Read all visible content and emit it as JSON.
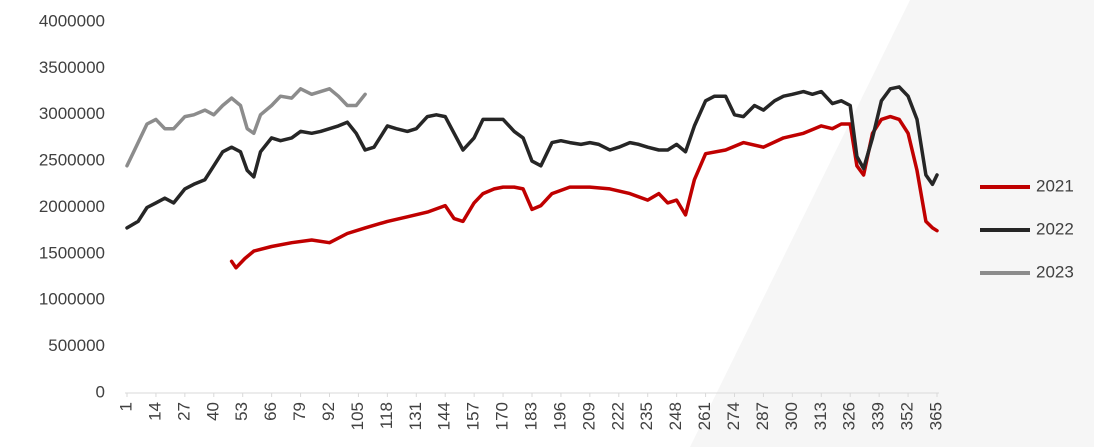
{
  "chart_data": {
    "type": "line",
    "xlim": [
      1,
      365
    ],
    "xticks": [
      1,
      14,
      27,
      40,
      53,
      66,
      79,
      92,
      105,
      118,
      131,
      144,
      157,
      170,
      183,
      196,
      209,
      222,
      235,
      248,
      261,
      274,
      287,
      300,
      313,
      326,
      339,
      352,
      365
    ],
    "ylim": [
      0,
      4000000
    ],
    "yticks": [
      0,
      500000,
      1000000,
      1500000,
      2000000,
      2500000,
      3000000,
      3500000,
      4000000
    ],
    "grid": false,
    "legend": "right",
    "series": [
      {
        "name": "2021",
        "color": "#c00000",
        "x": [
          48,
          50,
          54,
          58,
          66,
          75,
          84,
          92,
          100,
          108,
          118,
          127,
          136,
          144,
          148,
          152,
          157,
          161,
          166,
          170,
          175,
          179,
          183,
          187,
          192,
          200,
          209,
          218,
          227,
          235,
          240,
          244,
          248,
          252,
          256,
          261,
          270,
          278,
          287,
          296,
          305,
          313,
          318,
          322,
          326,
          329,
          332,
          336,
          340,
          344,
          348,
          352,
          356,
          360,
          363,
          365
        ],
        "values": [
          1420000,
          1350000,
          1450000,
          1530000,
          1580000,
          1620000,
          1650000,
          1620000,
          1720000,
          1780000,
          1850000,
          1900000,
          1950000,
          2020000,
          1880000,
          1850000,
          2050000,
          2150000,
          2200000,
          2220000,
          2220000,
          2200000,
          1980000,
          2020000,
          2150000,
          2220000,
          2220000,
          2200000,
          2150000,
          2080000,
          2150000,
          2050000,
          2080000,
          1920000,
          2300000,
          2580000,
          2620000,
          2700000,
          2650000,
          2750000,
          2800000,
          2880000,
          2850000,
          2900000,
          2900000,
          2450000,
          2350000,
          2800000,
          2950000,
          2980000,
          2950000,
          2800000,
          2400000,
          1850000,
          1780000,
          1750000
        ]
      },
      {
        "name": "2022",
        "color": "#262626",
        "x": [
          1,
          6,
          10,
          14,
          18,
          22,
          27,
          31,
          36,
          40,
          44,
          48,
          52,
          55,
          58,
          61,
          66,
          70,
          75,
          79,
          84,
          88,
          92,
          96,
          100,
          104,
          108,
          112,
          118,
          122,
          127,
          131,
          136,
          140,
          144,
          148,
          152,
          157,
          161,
          166,
          170,
          175,
          179,
          183,
          187,
          192,
          196,
          200,
          205,
          209,
          213,
          218,
          222,
          227,
          231,
          235,
          240,
          244,
          248,
          252,
          256,
          261,
          265,
          270,
          274,
          278,
          283,
          287,
          292,
          296,
          300,
          305,
          309,
          313,
          318,
          322,
          326,
          329,
          332,
          336,
          340,
          344,
          348,
          352,
          356,
          360,
          363,
          365
        ],
        "values": [
          1780000,
          1850000,
          2000000,
          2050000,
          2100000,
          2050000,
          2200000,
          2250000,
          2300000,
          2450000,
          2600000,
          2650000,
          2600000,
          2400000,
          2330000,
          2600000,
          2750000,
          2720000,
          2750000,
          2820000,
          2800000,
          2820000,
          2850000,
          2880000,
          2920000,
          2800000,
          2620000,
          2650000,
          2880000,
          2850000,
          2820000,
          2850000,
          2980000,
          3000000,
          2980000,
          2800000,
          2620000,
          2750000,
          2950000,
          2950000,
          2950000,
          2820000,
          2750000,
          2500000,
          2450000,
          2700000,
          2720000,
          2700000,
          2680000,
          2700000,
          2680000,
          2620000,
          2650000,
          2700000,
          2680000,
          2650000,
          2620000,
          2620000,
          2680000,
          2600000,
          2880000,
          3150000,
          3200000,
          3200000,
          3000000,
          2980000,
          3100000,
          3050000,
          3150000,
          3200000,
          3220000,
          3250000,
          3220000,
          3250000,
          3120000,
          3150000,
          3100000,
          2550000,
          2420000,
          2750000,
          3150000,
          3280000,
          3300000,
          3200000,
          2950000,
          2350000,
          2250000,
          2350000
        ]
      },
      {
        "name": "2023",
        "color": "#8c8c8c",
        "x": [
          1,
          6,
          10,
          14,
          18,
          22,
          27,
          31,
          36,
          40,
          44,
          48,
          52,
          55,
          58,
          61,
          66,
          70,
          75,
          79,
          84,
          88,
          92,
          96,
          100,
          104,
          108
        ],
        "values": [
          2450000,
          2700000,
          2900000,
          2950000,
          2850000,
          2850000,
          2980000,
          3000000,
          3050000,
          3000000,
          3100000,
          3180000,
          3100000,
          2850000,
          2800000,
          3000000,
          3100000,
          3200000,
          3180000,
          3280000,
          3220000,
          3250000,
          3280000,
          3200000,
          3100000,
          3100000,
          3220000
        ]
      }
    ]
  }
}
